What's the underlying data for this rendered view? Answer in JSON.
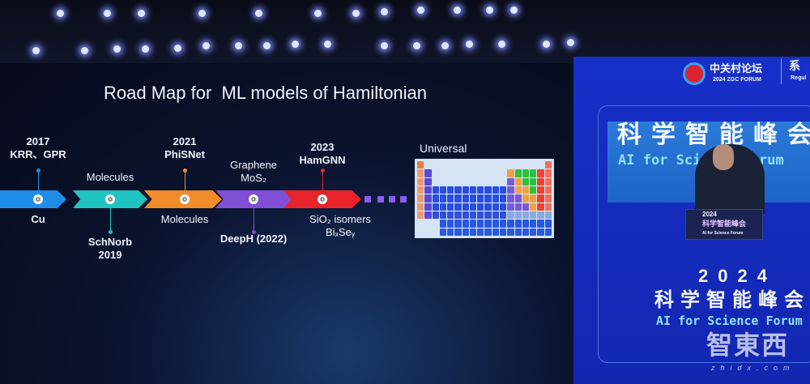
{
  "slide": {
    "title": "Road Map for  ML models of Hamiltonian",
    "timeline": [
      {
        "above": [
          "2017",
          "KRR、GPR"
        ],
        "below": [
          "Cu"
        ],
        "color": "#1e8ce8"
      },
      {
        "above": [
          "Molecules"
        ],
        "below": [
          "SchNorb",
          "2019"
        ],
        "color": "#1fc4c0"
      },
      {
        "above": [
          "2021",
          "PhiSNet"
        ],
        "below": [
          "Molecules"
        ],
        "color": "#f28c2a"
      },
      {
        "above": [
          "Graphene",
          "MoS₂"
        ],
        "below": [
          "DeepH (2022)"
        ],
        "color": "#7f4fd6"
      },
      {
        "above": [
          "2023",
          "HamGNN"
        ],
        "below": [
          "SiO₂ isomers",
          "BiₓSeᵧ"
        ],
        "color": "#e8242a"
      }
    ],
    "continuation_color": "#8a5cf0",
    "universal_label": "Universal",
    "periodic_table_caption": "periodic table of elements"
  },
  "screen": {
    "forum_logo_cn": "中关村论坛",
    "forum_logo_en": "2024 ZGC FORUM",
    "right_cut_cn": "系",
    "right_cut_en": "Regul",
    "video_cn": "科学智能峰会",
    "video_en": "AI for Science Forum",
    "podium_year": "2024",
    "podium_cn": "科学智能峰会",
    "podium_en": "AI for Science Forum",
    "year": "2024",
    "cn_title": "科学智能峰会",
    "en_title": "AI for Science Forum"
  },
  "watermark": {
    "cn": "智東西",
    "url": "zhidx.com"
  }
}
